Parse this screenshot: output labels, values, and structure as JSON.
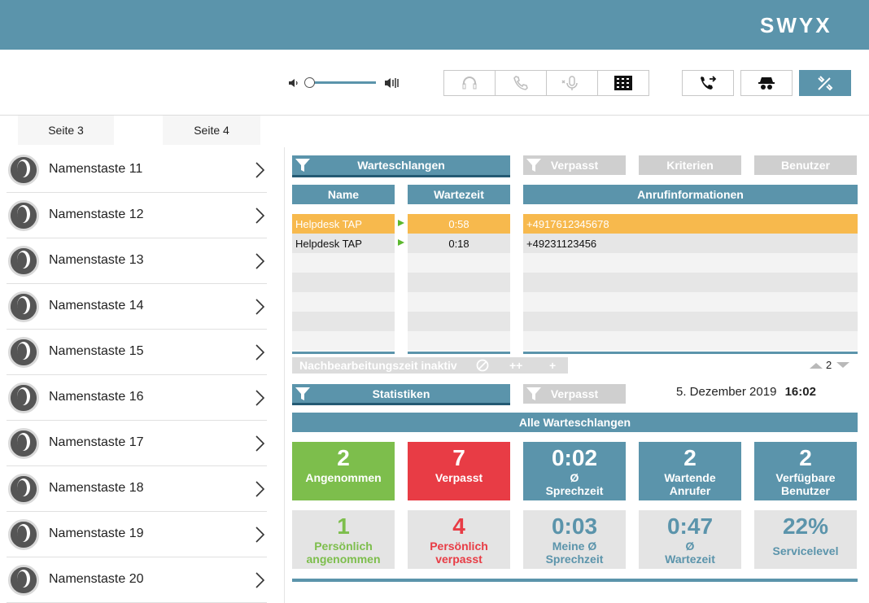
{
  "brand": {
    "logo_text": "SWYX"
  },
  "tabs": [
    {
      "label": "Seite 3"
    },
    {
      "label": "Seite 4"
    }
  ],
  "name_keys": [
    {
      "label": "Namenstaste 11"
    },
    {
      "label": "Namenstaste 12"
    },
    {
      "label": "Namenstaste 13"
    },
    {
      "label": "Namenstaste 14"
    },
    {
      "label": "Namenstaste 15"
    },
    {
      "label": "Namenstaste 16"
    },
    {
      "label": "Namenstaste 17"
    },
    {
      "label": "Namenstaste 18"
    },
    {
      "label": "Namenstaste 19"
    },
    {
      "label": "Namenstaste 20"
    }
  ],
  "queue_panel": {
    "filter_label": "Warteschlangen",
    "missed_label": "Verpasst",
    "criteria_label": "Kriterien",
    "users_label": "Benutzer",
    "col_name": "Name",
    "col_wait": "Wartezeit",
    "col_info": "Anrufinformationen",
    "rows": [
      {
        "name": "Helpdesk TAP",
        "wait": "0:58",
        "info": "+4917612345678",
        "highlight": true
      },
      {
        "name": "Helpdesk TAP",
        "wait": "0:18",
        "info": "+49231123456",
        "highlight": false
      }
    ],
    "postproc_label": "Nachbearbeitungszeit inaktiv",
    "postproc_plusplus": "++",
    "postproc_plus": "+",
    "page_number": "2"
  },
  "stats_panel": {
    "filter_label": "Statistiken",
    "missed_label": "Verpasst",
    "date": "5. Dezember 2019",
    "time": "16:02",
    "group_label": "Alle Warteschlangen",
    "tiles": [
      {
        "value": "2",
        "label": "Angenommen",
        "color": "#7dbe4c"
      },
      {
        "value": "7",
        "label": "Verpasst",
        "color": "#e83c45"
      },
      {
        "value": "0:02",
        "label": "Ø Sprechzeit",
        "color": "#5b94ab"
      },
      {
        "value": "2",
        "label": "Wartende Anrufer",
        "color": "#5b94ab"
      },
      {
        "value": "2",
        "label": "Verfügbare Benutzer",
        "color": "#5b94ab"
      }
    ],
    "personal_tiles": [
      {
        "value": "1",
        "label": "Persönlich angenommen",
        "color": "#7dbe4c"
      },
      {
        "value": "4",
        "label": "Persönlich verpasst",
        "color": "#e83c45"
      },
      {
        "value": "0:03",
        "label": "Meine Ø Sprechzeit",
        "color": "#5b94ab"
      },
      {
        "value": "0:47",
        "label": "Ø Wartezeit",
        "color": "#5b94ab"
      },
      {
        "value": "22%",
        "label": "Servicelevel",
        "color": "#5b94ab"
      }
    ]
  },
  "icons": {
    "volume_low": "volume-low-icon",
    "volume_high": "volume-high-icon",
    "headset": "headset-icon",
    "phone": "phone-icon",
    "mic": "microphone-icon",
    "dialpad": "dialpad-icon",
    "transfer": "call-transfer-icon",
    "incognito": "incognito-icon",
    "tools": "tools-icon"
  },
  "colors": {
    "brand": "#5b94ab",
    "highlight": "#f7b94d",
    "green": "#7dbe4c",
    "red": "#e83c45"
  }
}
